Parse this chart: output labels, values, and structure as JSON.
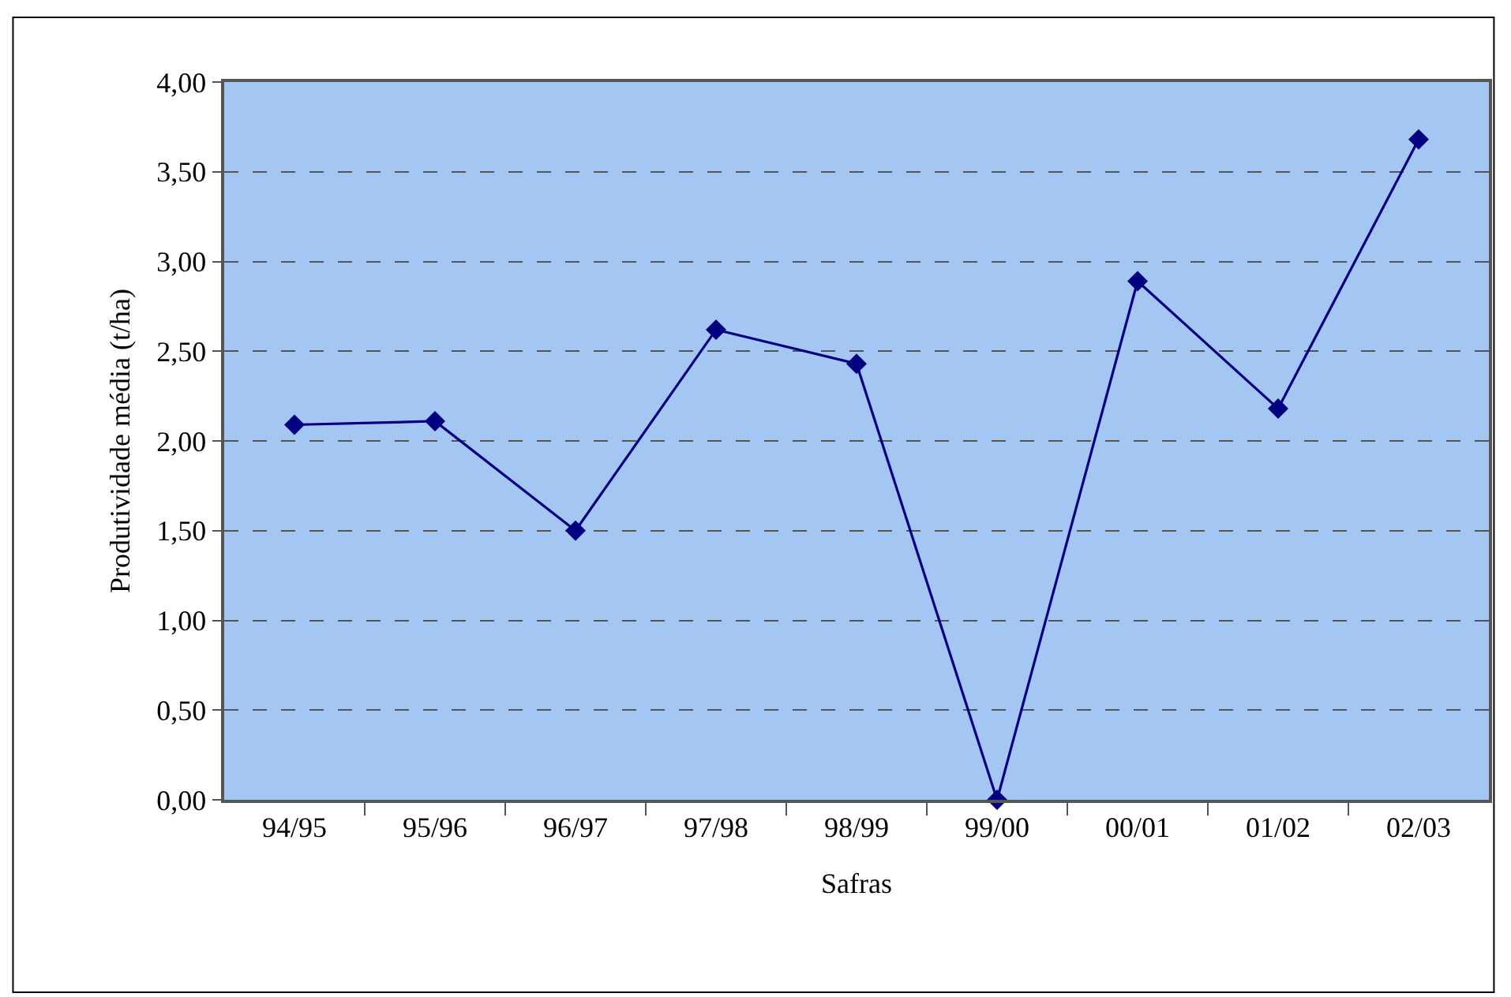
{
  "chart_data": {
    "type": "line",
    "xlabel": "Safras",
    "ylabel": "Produtividade média (t/ha)",
    "categories": [
      "94/95",
      "95/96",
      "96/97",
      "97/98",
      "98/99",
      "99/00",
      "00/01",
      "01/02",
      "02/03"
    ],
    "series": [
      {
        "color": "#000080",
        "values": [
          2.09,
          2.11,
          1.5,
          2.62,
          2.43,
          0.0,
          2.89,
          2.18,
          3.68
        ]
      }
    ],
    "ylim": [
      0,
      4
    ],
    "yticks": [
      {
        "value": 0,
        "label": "0,00"
      },
      {
        "value": 0.5,
        "label": "0,50"
      },
      {
        "value": 1,
        "label": "1,00"
      },
      {
        "value": 1.5,
        "label": "1,50"
      },
      {
        "value": 2,
        "label": "2,00"
      },
      {
        "value": 2.5,
        "label": "2,50"
      },
      {
        "value": 3,
        "label": "3,00"
      },
      {
        "value": 3.5,
        "label": "3,50"
      },
      {
        "value": 4,
        "label": "4,00"
      }
    ],
    "grid": "y",
    "marker": "diamond",
    "line_style": "solid"
  }
}
